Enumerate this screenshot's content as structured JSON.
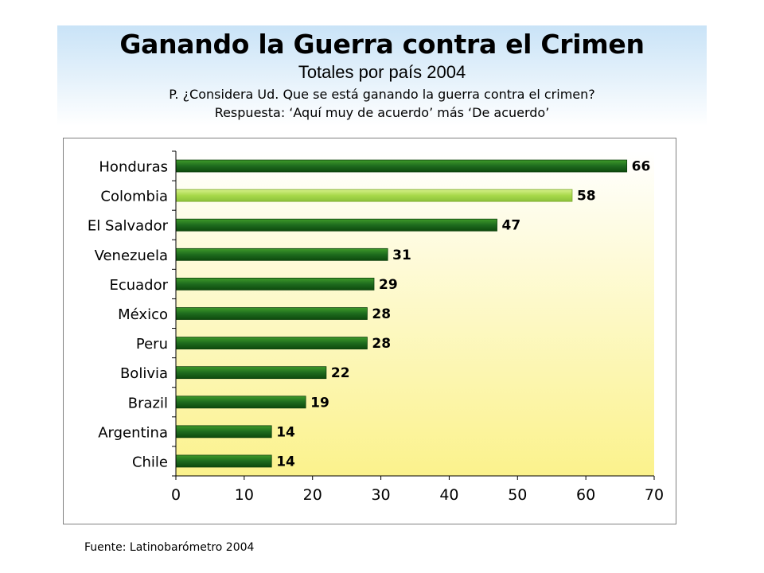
{
  "header": {
    "title": "Ganando la Guerra contra el Crimen",
    "subtitle": "Totales por país 2004",
    "question": "P. ¿Considera Ud. Que se está ganando la guerra contra el crimen?",
    "answer": "Respuesta: ‘Aquí muy de acuerdo’ más ‘De acuerdo’"
  },
  "footer": {
    "source": "Fuente: Latinobarómetro 2004"
  },
  "colors": {
    "bar_dark": "#1e6b1e",
    "bar_mid": "#3f9b2a",
    "bar_highlight": "#a8d84a",
    "plot_bg_top": "#ffffff",
    "plot_bg_bottom": "#fbf28c"
  },
  "chart_data": {
    "type": "bar",
    "orientation": "horizontal",
    "categories": [
      "Honduras",
      "Colombia",
      "El Salvador",
      "Venezuela",
      "Ecuador",
      "México",
      "Peru",
      "Bolivia",
      "Brazil",
      "Argentina",
      "Chile"
    ],
    "values": [
      66,
      58,
      47,
      31,
      29,
      28,
      28,
      22,
      19,
      14,
      14
    ],
    "highlight": "Colombia",
    "xlim": [
      0,
      70
    ],
    "xticks": [
      0,
      10,
      20,
      30,
      40,
      50,
      60,
      70
    ],
    "grid": false,
    "legend": "none"
  }
}
